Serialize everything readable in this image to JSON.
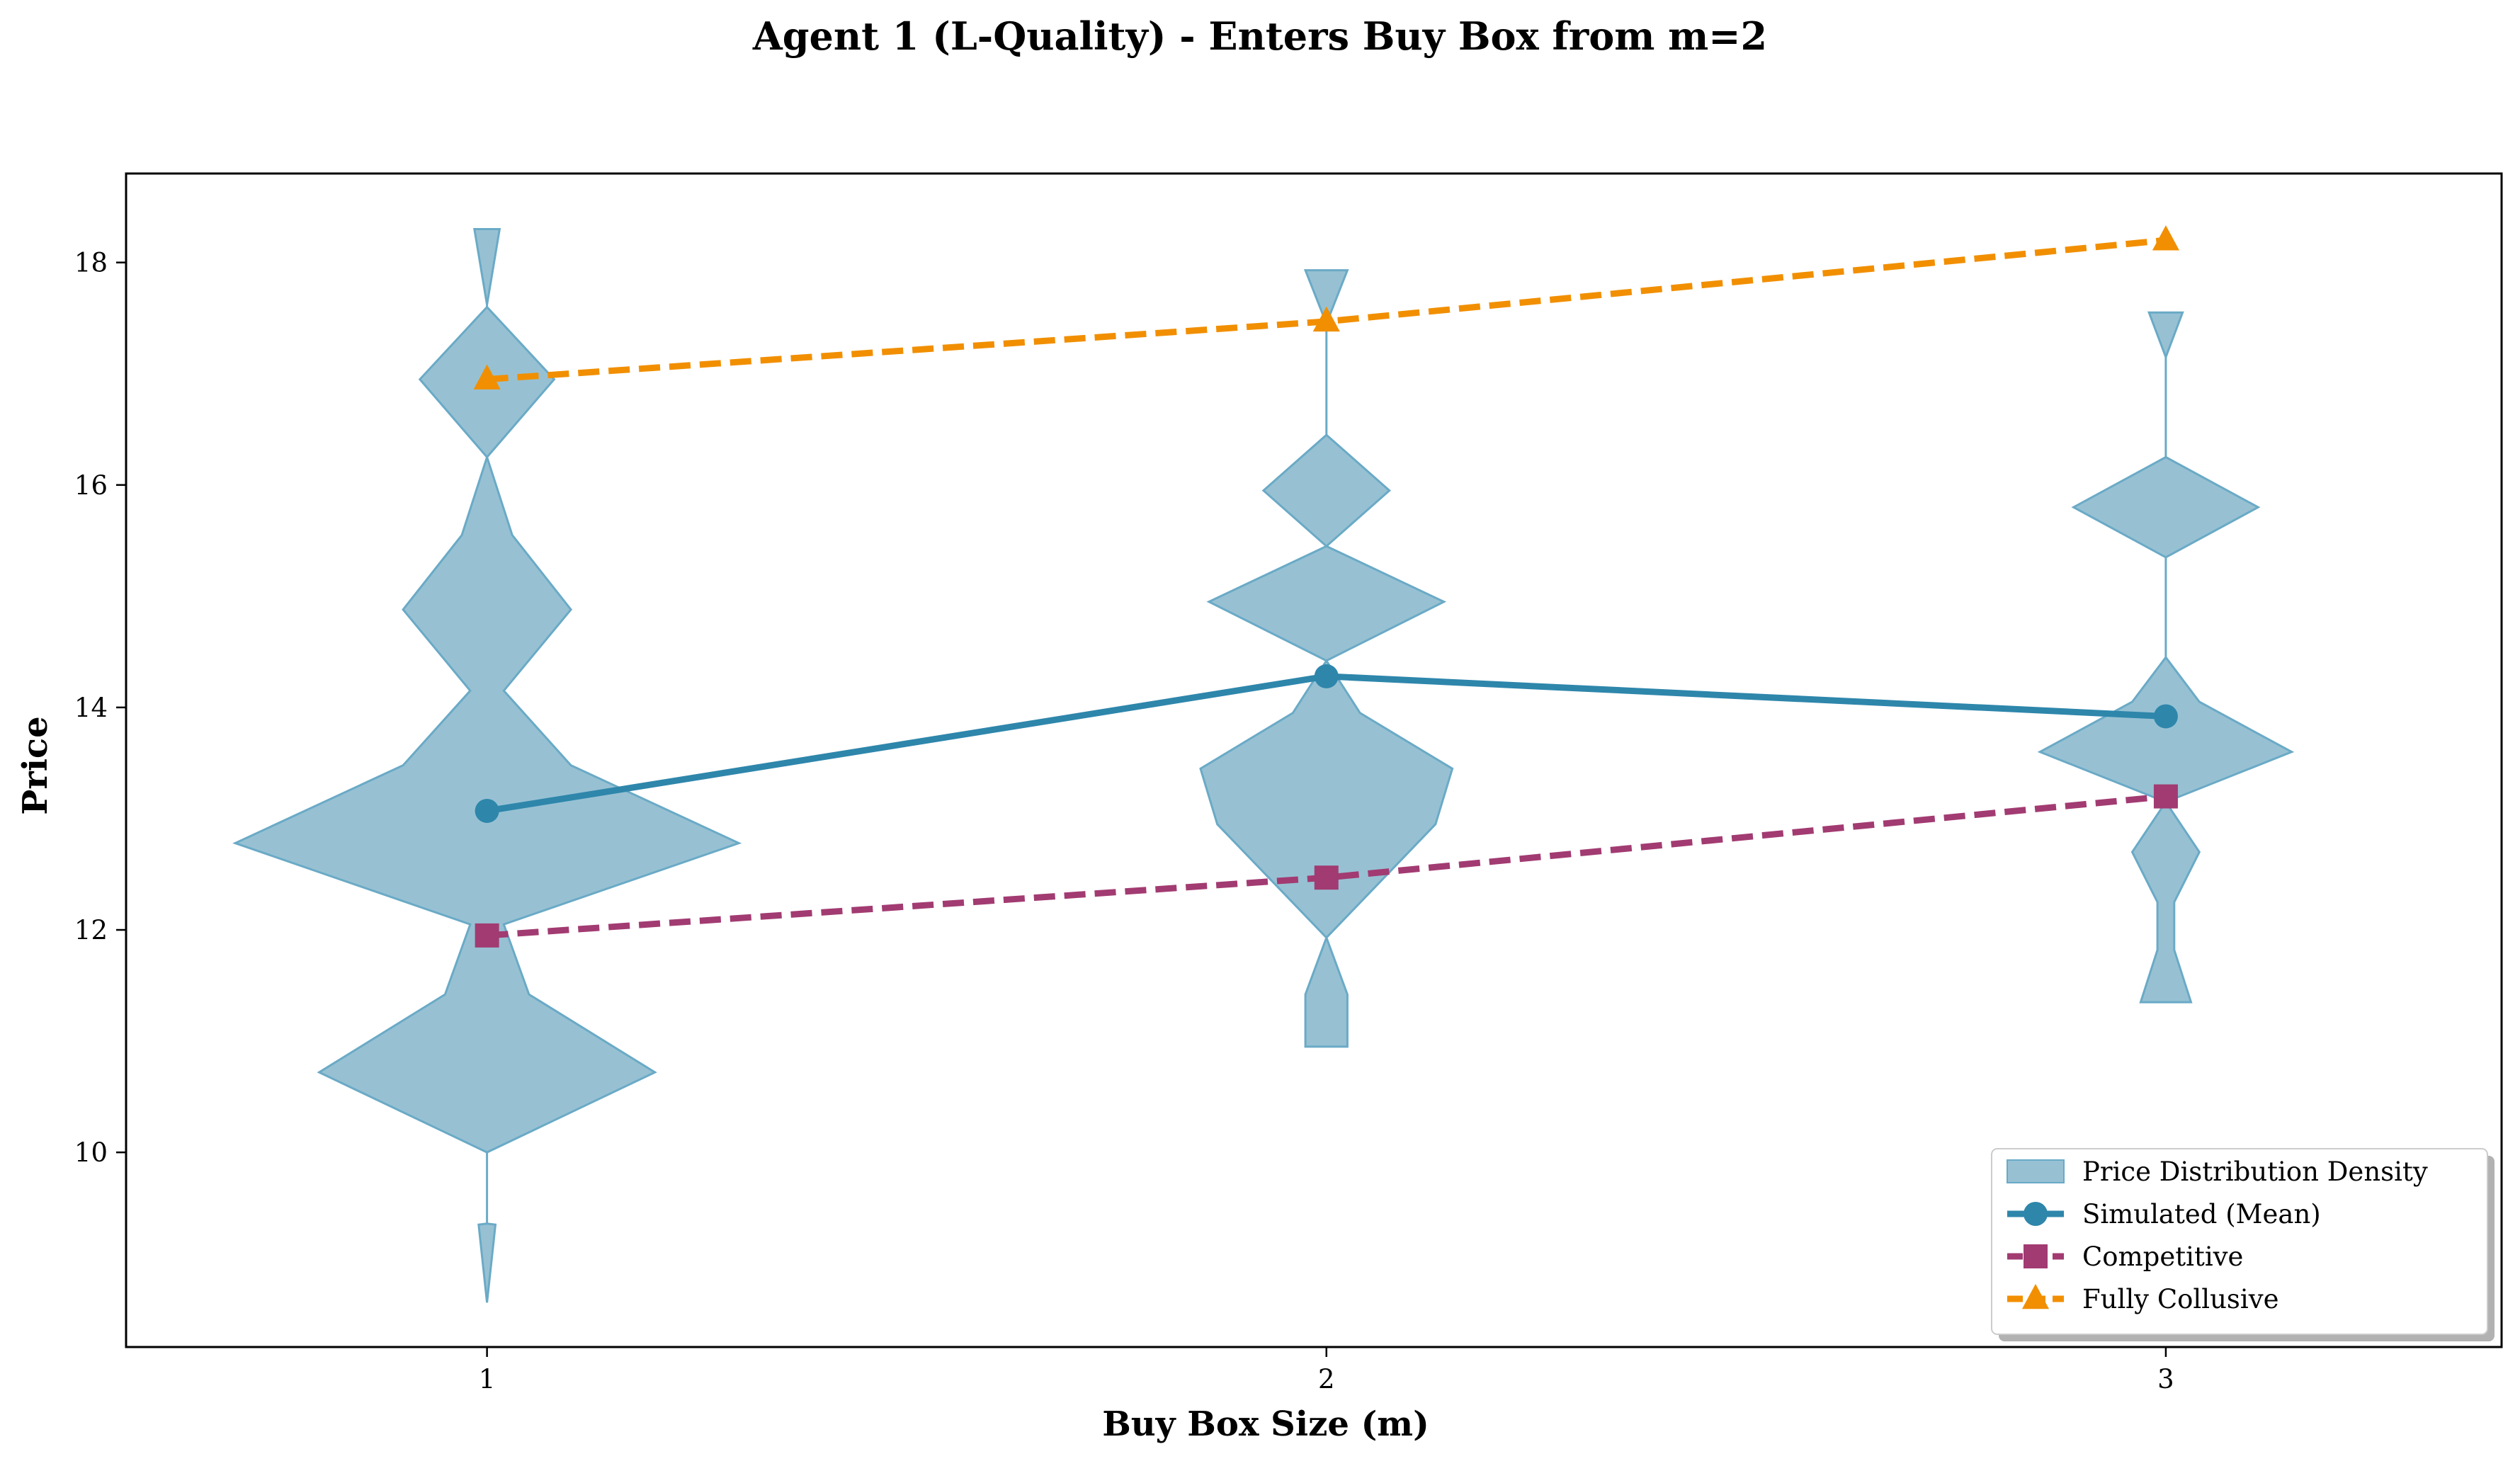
{
  "chart_data": {
    "type": "line",
    "title": "Agent 1 (L-Quality) - Enters Buy Box from m=2",
    "xlabel": "Buy Box Size (m)",
    "ylabel": "Price",
    "x": [
      1,
      2,
      3
    ],
    "x_ticks": [
      "1",
      "2",
      "3"
    ],
    "y_ticks": [
      "10",
      "12",
      "14",
      "16",
      "18"
    ],
    "y_tick_values": [
      10,
      12,
      14,
      16,
      18
    ],
    "xlim": [
      0.57,
      3.4
    ],
    "ylim": [
      8.25,
      18.8
    ],
    "grid": false,
    "legend_position": "lower right",
    "series": [
      {
        "name": "Simulated (Mean)",
        "values": [
          13.07,
          14.28,
          13.92
        ],
        "color": "#2e86ab",
        "style": "solid",
        "marker": "circle"
      },
      {
        "name": "Competitive",
        "values": [
          11.95,
          12.47,
          13.2
        ],
        "color": "#a23b72",
        "style": "dashed",
        "marker": "square"
      },
      {
        "name": "Fully Collusive",
        "values": [
          16.95,
          17.47,
          18.2
        ],
        "color": "#f18f01",
        "style": "dashed",
        "marker": "triangle"
      }
    ],
    "violins": {
      "name": "Price Distribution Density",
      "color": "#97c1d3",
      "edge_color": "#6aaac6",
      "max_half_width": 0.3,
      "distributions": [
        {
          "x": 1,
          "profile": [
            [
              8.65,
              0.0
            ],
            [
              9.35,
              0.01
            ],
            [
              9.36,
              0.0
            ],
            [
              10.0,
              0.0
            ],
            [
              10.72,
              0.2
            ],
            [
              11.42,
              0.05
            ],
            [
              12.05,
              0.02
            ],
            [
              12.78,
              0.3
            ],
            [
              13.48,
              0.1
            ],
            [
              14.15,
              0.02
            ],
            [
              14.88,
              0.1
            ],
            [
              15.55,
              0.03
            ],
            [
              16.25,
              0.0
            ],
            [
              16.95,
              0.08
            ],
            [
              17.6,
              0.0
            ],
            [
              17.62,
              0.0
            ],
            [
              18.3,
              0.015
            ]
          ]
        },
        {
          "x": 2,
          "profile": [
            [
              10.95,
              0.025
            ],
            [
              11.42,
              0.025
            ],
            [
              11.93,
              0.0
            ],
            [
              12.95,
              0.13
            ],
            [
              13.45,
              0.15
            ],
            [
              13.95,
              0.04
            ],
            [
              14.42,
              0.0
            ],
            [
              14.95,
              0.14
            ],
            [
              15.45,
              0.0
            ],
            [
              15.95,
              0.075
            ],
            [
              16.45,
              0.0
            ],
            [
              17.05,
              0.0
            ],
            [
              17.45,
              0.0
            ],
            [
              17.93,
              0.025
            ]
          ]
        },
        {
          "x": 3,
          "profile": [
            [
              11.35,
              0.03
            ],
            [
              11.82,
              0.01
            ],
            [
              12.25,
              0.01
            ],
            [
              12.7,
              0.04
            ],
            [
              13.15,
              0.0
            ],
            [
              13.6,
              0.15
            ],
            [
              14.05,
              0.04
            ],
            [
              14.45,
              0.0
            ],
            [
              15.35,
              0.0
            ],
            [
              15.8,
              0.11
            ],
            [
              16.25,
              0.0
            ],
            [
              16.65,
              0.0
            ],
            [
              17.15,
              0.0
            ],
            [
              17.55,
              0.02
            ]
          ]
        }
      ]
    }
  }
}
